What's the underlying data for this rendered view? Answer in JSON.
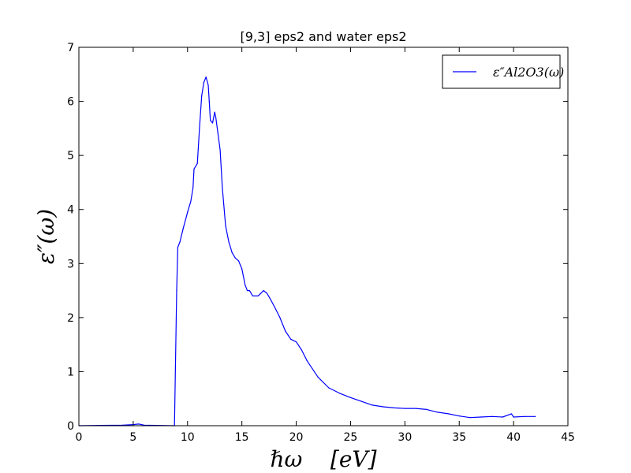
{
  "chart_data": {
    "type": "line",
    "title": "[9,3] eps2 and water eps2",
    "xlabel": "ℏω    [eV]",
    "ylabel": "ε″(ω)",
    "xlim": [
      0,
      45
    ],
    "ylim": [
      0,
      7
    ],
    "x_ticks": [
      "0",
      "5",
      "10",
      "15",
      "20",
      "25",
      "30",
      "35",
      "40",
      "45"
    ],
    "y_ticks": [
      "0",
      "1",
      "2",
      "3",
      "4",
      "5",
      "6",
      "7"
    ],
    "legend_position": "top-right",
    "grid": false,
    "series": [
      {
        "name": "ε″Al2O3(ω)",
        "color": "#0000ff",
        "x": [
          0,
          4,
          5,
          5.5,
          6,
          8.8,
          9.0,
          9.1,
          9.3,
          9.6,
          10.0,
          10.3,
          10.5,
          10.6,
          10.9,
          11.1,
          11.3,
          11.5,
          11.7,
          11.9,
          12.0,
          12.1,
          12.3,
          12.5,
          12.6,
          12.8,
          13.0,
          13.2,
          13.5,
          13.8,
          14.1,
          14.4,
          14.7,
          15.0,
          15.3,
          15.5,
          15.7,
          16.0,
          16.5,
          17.0,
          17.3,
          17.6,
          18.0,
          18.5,
          19.0,
          19.5,
          20.0,
          20.5,
          21.0,
          22.0,
          23.0,
          24.0,
          25.0,
          26.0,
          27.0,
          28.0,
          29.0,
          30.0,
          31.0,
          32.0,
          33.0,
          34.0,
          35.0,
          36.0,
          37.0,
          38.0,
          39.0,
          39.8,
          40.0,
          41.0,
          42.0
        ],
        "values": [
          0.0,
          0.01,
          0.02,
          0.03,
          0.01,
          0.0,
          2.5,
          3.3,
          3.4,
          3.65,
          3.95,
          4.15,
          4.4,
          4.75,
          4.85,
          5.5,
          6.1,
          6.35,
          6.45,
          6.3,
          6.0,
          5.65,
          5.6,
          5.8,
          5.7,
          5.4,
          5.1,
          4.4,
          3.7,
          3.4,
          3.2,
          3.1,
          3.05,
          2.9,
          2.6,
          2.5,
          2.5,
          2.4,
          2.4,
          2.5,
          2.45,
          2.35,
          2.2,
          2.0,
          1.75,
          1.6,
          1.55,
          1.4,
          1.2,
          0.9,
          0.7,
          0.6,
          0.52,
          0.45,
          0.38,
          0.35,
          0.33,
          0.32,
          0.32,
          0.3,
          0.25,
          0.22,
          0.18,
          0.15,
          0.16,
          0.17,
          0.16,
          0.22,
          0.16,
          0.17,
          0.17
        ]
      }
    ]
  }
}
